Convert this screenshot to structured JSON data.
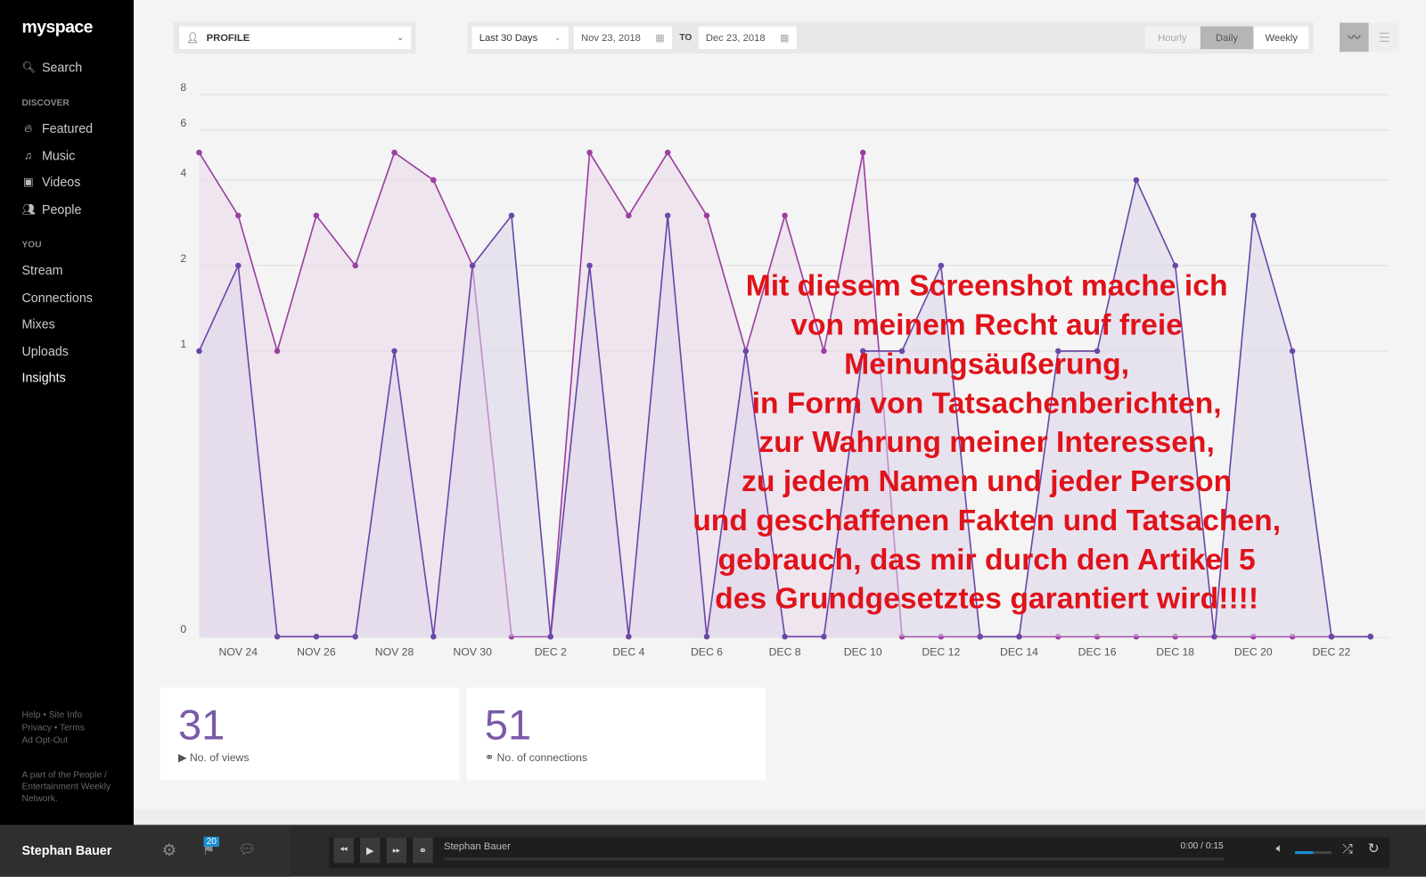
{
  "app": {
    "logo": "myspace"
  },
  "sidebar": {
    "search": "Search",
    "discover_label": "DISCOVER",
    "discover": [
      {
        "label": "Featured",
        "icon": "flame-icon"
      },
      {
        "label": "Music",
        "icon": "music-note-icon"
      },
      {
        "label": "Videos",
        "icon": "video-icon"
      },
      {
        "label": "People",
        "icon": "people-icon"
      }
    ],
    "you_label": "YOU",
    "you": [
      "Stream",
      "Connections",
      "Mixes",
      "Uploads",
      "Insights"
    ],
    "footer": {
      "help": "Help",
      "site_info": "Site Info",
      "privacy": "Privacy",
      "terms": "Terms",
      "opt_out": "Ad Opt-Out",
      "network": "A part of the People / Entertainment Weekly Network."
    }
  },
  "toolbar": {
    "profile": "PROFILE",
    "range": "Last 30 Days",
    "from": "Nov 23, 2018",
    "to_label": "TO",
    "to": "Dec 23, 2018",
    "hourly": "Hourly",
    "daily": "Daily",
    "weekly": "Weekly"
  },
  "stats": {
    "views": "31",
    "views_label": "No. of views",
    "connections": "51",
    "connections_label": "No. of connections"
  },
  "player": {
    "user": "Stephan Bauer",
    "badge": "20",
    "track": "Stephan Bauer",
    "time": "0:00 / 0:15"
  },
  "overlay": [
    "Mit diesem Screenshot mache ich",
    "von meinem Recht auf freie",
    "Meinungsäußerung,",
    "in Form von Tatsachenberichten,",
    "zur Wahrung meiner Interessen,",
    "zu jedem Namen und jeder Person",
    "und geschaffenen Fakten und Tatsachen,",
    "gebrauch, das mir durch den Artikel 5",
    "des Grundgesetztes garantiert wird!!!!"
  ],
  "chart_data": {
    "type": "area",
    "yscale": "log (0 at baseline)",
    "y_ticks": [
      0,
      1,
      2,
      4,
      6,
      8
    ],
    "x": [
      "Nov 23",
      "Nov 24",
      "Nov 25",
      "Nov 26",
      "Nov 27",
      "Nov 28",
      "Nov 29",
      "Nov 30",
      "Dec 1",
      "Dec 2",
      "Dec 3",
      "Dec 4",
      "Dec 5",
      "Dec 6",
      "Dec 7",
      "Dec 8",
      "Dec 9",
      "Dec 10",
      "Dec 11",
      "Dec 12",
      "Dec 13",
      "Dec 14",
      "Dec 15",
      "Dec 16",
      "Dec 17",
      "Dec 18",
      "Dec 19",
      "Dec 20",
      "Dec 21",
      "Dec 22",
      "Dec 23"
    ],
    "x_tick_labels": [
      "NOV 24",
      "NOV 26",
      "NOV 28",
      "NOV 30",
      "DEC 2",
      "DEC 4",
      "DEC 6",
      "DEC 8",
      "DEC 10",
      "DEC 12",
      "DEC 14",
      "DEC 16",
      "DEC 18",
      "DEC 20",
      "DEC 22"
    ],
    "series": [
      {
        "color": "#9b3fa0",
        "fill": "#ead8ea",
        "values": [
          5,
          3,
          1,
          3,
          2,
          5,
          4,
          2,
          0,
          0,
          5,
          3,
          5,
          3,
          1,
          3,
          1,
          5,
          0,
          0,
          0,
          0,
          0,
          0,
          0,
          0,
          0,
          0,
          0,
          0,
          0
        ]
      },
      {
        "color": "#6a48a8",
        "fill": "#dcd5ea",
        "values": [
          1,
          2,
          0,
          0,
          0,
          1,
          0,
          2,
          3,
          0,
          2,
          0,
          3,
          0,
          1,
          0,
          0,
          1,
          1,
          2,
          0,
          0,
          1,
          1,
          4,
          2,
          0,
          3,
          1,
          0,
          0
        ]
      }
    ]
  }
}
